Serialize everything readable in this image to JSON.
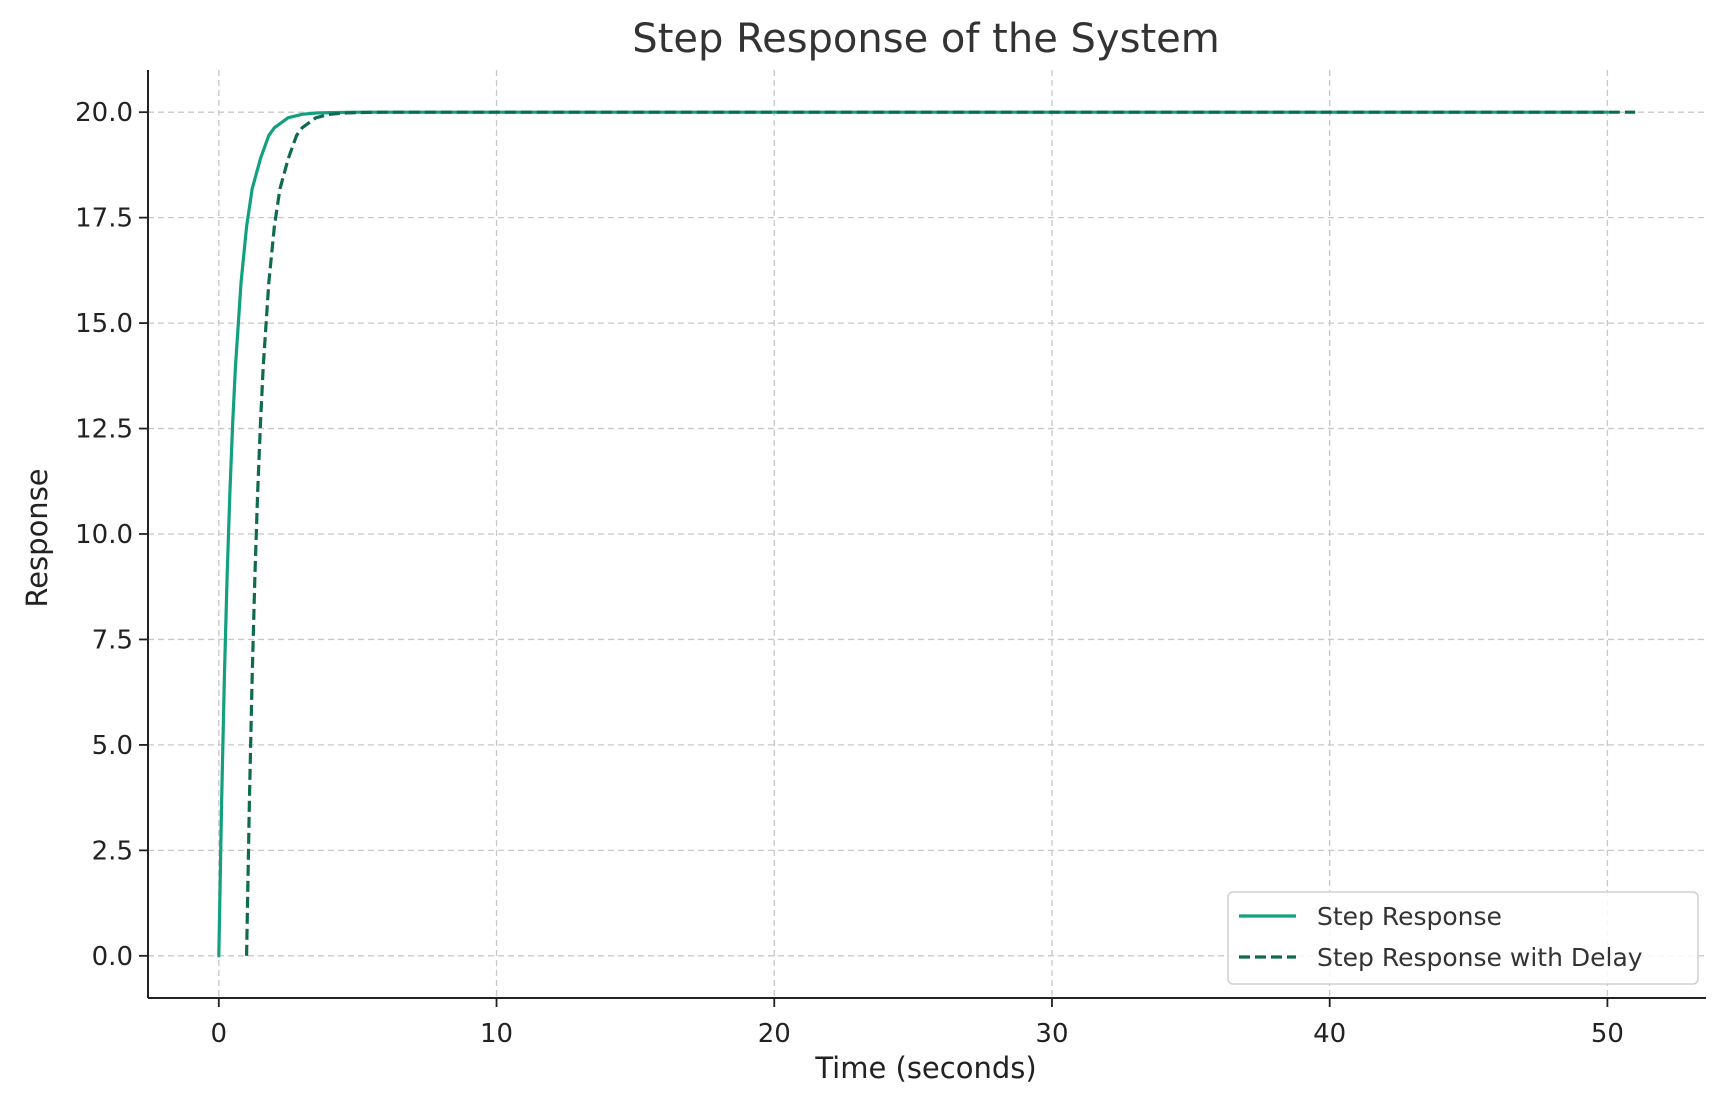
{
  "chart_data": {
    "type": "line",
    "title": "Step Response of the System",
    "xlabel": "Time (seconds)",
    "ylabel": "Response",
    "xlim": [
      -2.55,
      53.55
    ],
    "ylim": [
      -1.0,
      21.0
    ],
    "xticks": [
      0,
      10,
      20,
      30,
      40,
      50
    ],
    "xtick_labels": [
      "0",
      "10",
      "20",
      "30",
      "40",
      "50"
    ],
    "yticks": [
      0.0,
      2.5,
      5.0,
      7.5,
      10.0,
      12.5,
      15.0,
      17.5,
      20.0
    ],
    "ytick_labels": [
      "0.0",
      "2.5",
      "5.0",
      "7.5",
      "10.0",
      "12.5",
      "15.0",
      "17.5",
      "20.0"
    ],
    "grid": true,
    "legend_position": "lower-right",
    "series": [
      {
        "name": "Step Response",
        "style": "solid",
        "color": "#12a07e",
        "x": [
          0,
          0.1,
          0.2,
          0.3,
          0.4,
          0.5,
          0.6,
          0.8,
          1.0,
          1.2,
          1.5,
          1.8,
          2.0,
          2.5,
          3.0,
          3.5,
          4.0,
          5.0,
          6.0,
          8.0,
          10.0,
          20.0,
          30.0,
          40.0,
          50.0
        ],
        "y": [
          0.0,
          3.63,
          6.59,
          9.03,
          11.01,
          12.64,
          13.98,
          15.96,
          17.29,
          18.18,
          18.9,
          19.45,
          19.63,
          19.87,
          19.95,
          19.98,
          19.99,
          20.0,
          20.0,
          20.0,
          20.0,
          20.0,
          20.0,
          20.0,
          20.0
        ]
      },
      {
        "name": "Step Response with Delay",
        "style": "dashed",
        "color": "#0f6b50",
        "x": [
          1.0,
          1.1,
          1.2,
          1.3,
          1.4,
          1.5,
          1.6,
          1.8,
          2.0,
          2.2,
          2.5,
          2.8,
          3.0,
          3.5,
          4.0,
          4.5,
          5.0,
          6.0,
          7.0,
          9.0,
          11.0,
          21.0,
          31.0,
          41.0,
          51.0
        ],
        "y": [
          0.0,
          3.63,
          6.59,
          9.03,
          11.01,
          12.64,
          13.98,
          15.96,
          17.29,
          18.18,
          18.9,
          19.45,
          19.63,
          19.87,
          19.95,
          19.98,
          19.99,
          20.0,
          20.0,
          20.0,
          20.0,
          20.0,
          20.0,
          20.0,
          20.0
        ]
      }
    ]
  }
}
